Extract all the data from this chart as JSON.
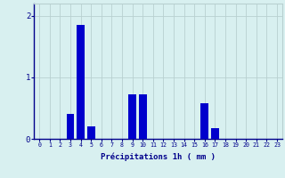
{
  "hours": [
    0,
    1,
    2,
    3,
    4,
    5,
    6,
    7,
    8,
    9,
    10,
    11,
    12,
    13,
    14,
    15,
    16,
    17,
    18,
    19,
    20,
    21,
    22,
    23
  ],
  "values": [
    0,
    0,
    0,
    0.4,
    1.85,
    0.2,
    0,
    0,
    0,
    0.72,
    0.72,
    0,
    0,
    0,
    0,
    0,
    0.58,
    0.18,
    0,
    0,
    0,
    0,
    0,
    0
  ],
  "bar_color": "#0000cc",
  "background_color": "#d8f0f0",
  "grid_color": "#b8d0d0",
  "xlabel": "Précipitations 1h ( mm )",
  "xlabel_color": "#00008b",
  "tick_color": "#00008b",
  "ylim": [
    0,
    2.2
  ],
  "yticks": [
    0,
    1,
    2
  ],
  "bar_width": 0.75,
  "figwidth": 3.2,
  "figheight": 2.0,
  "dpi": 100
}
